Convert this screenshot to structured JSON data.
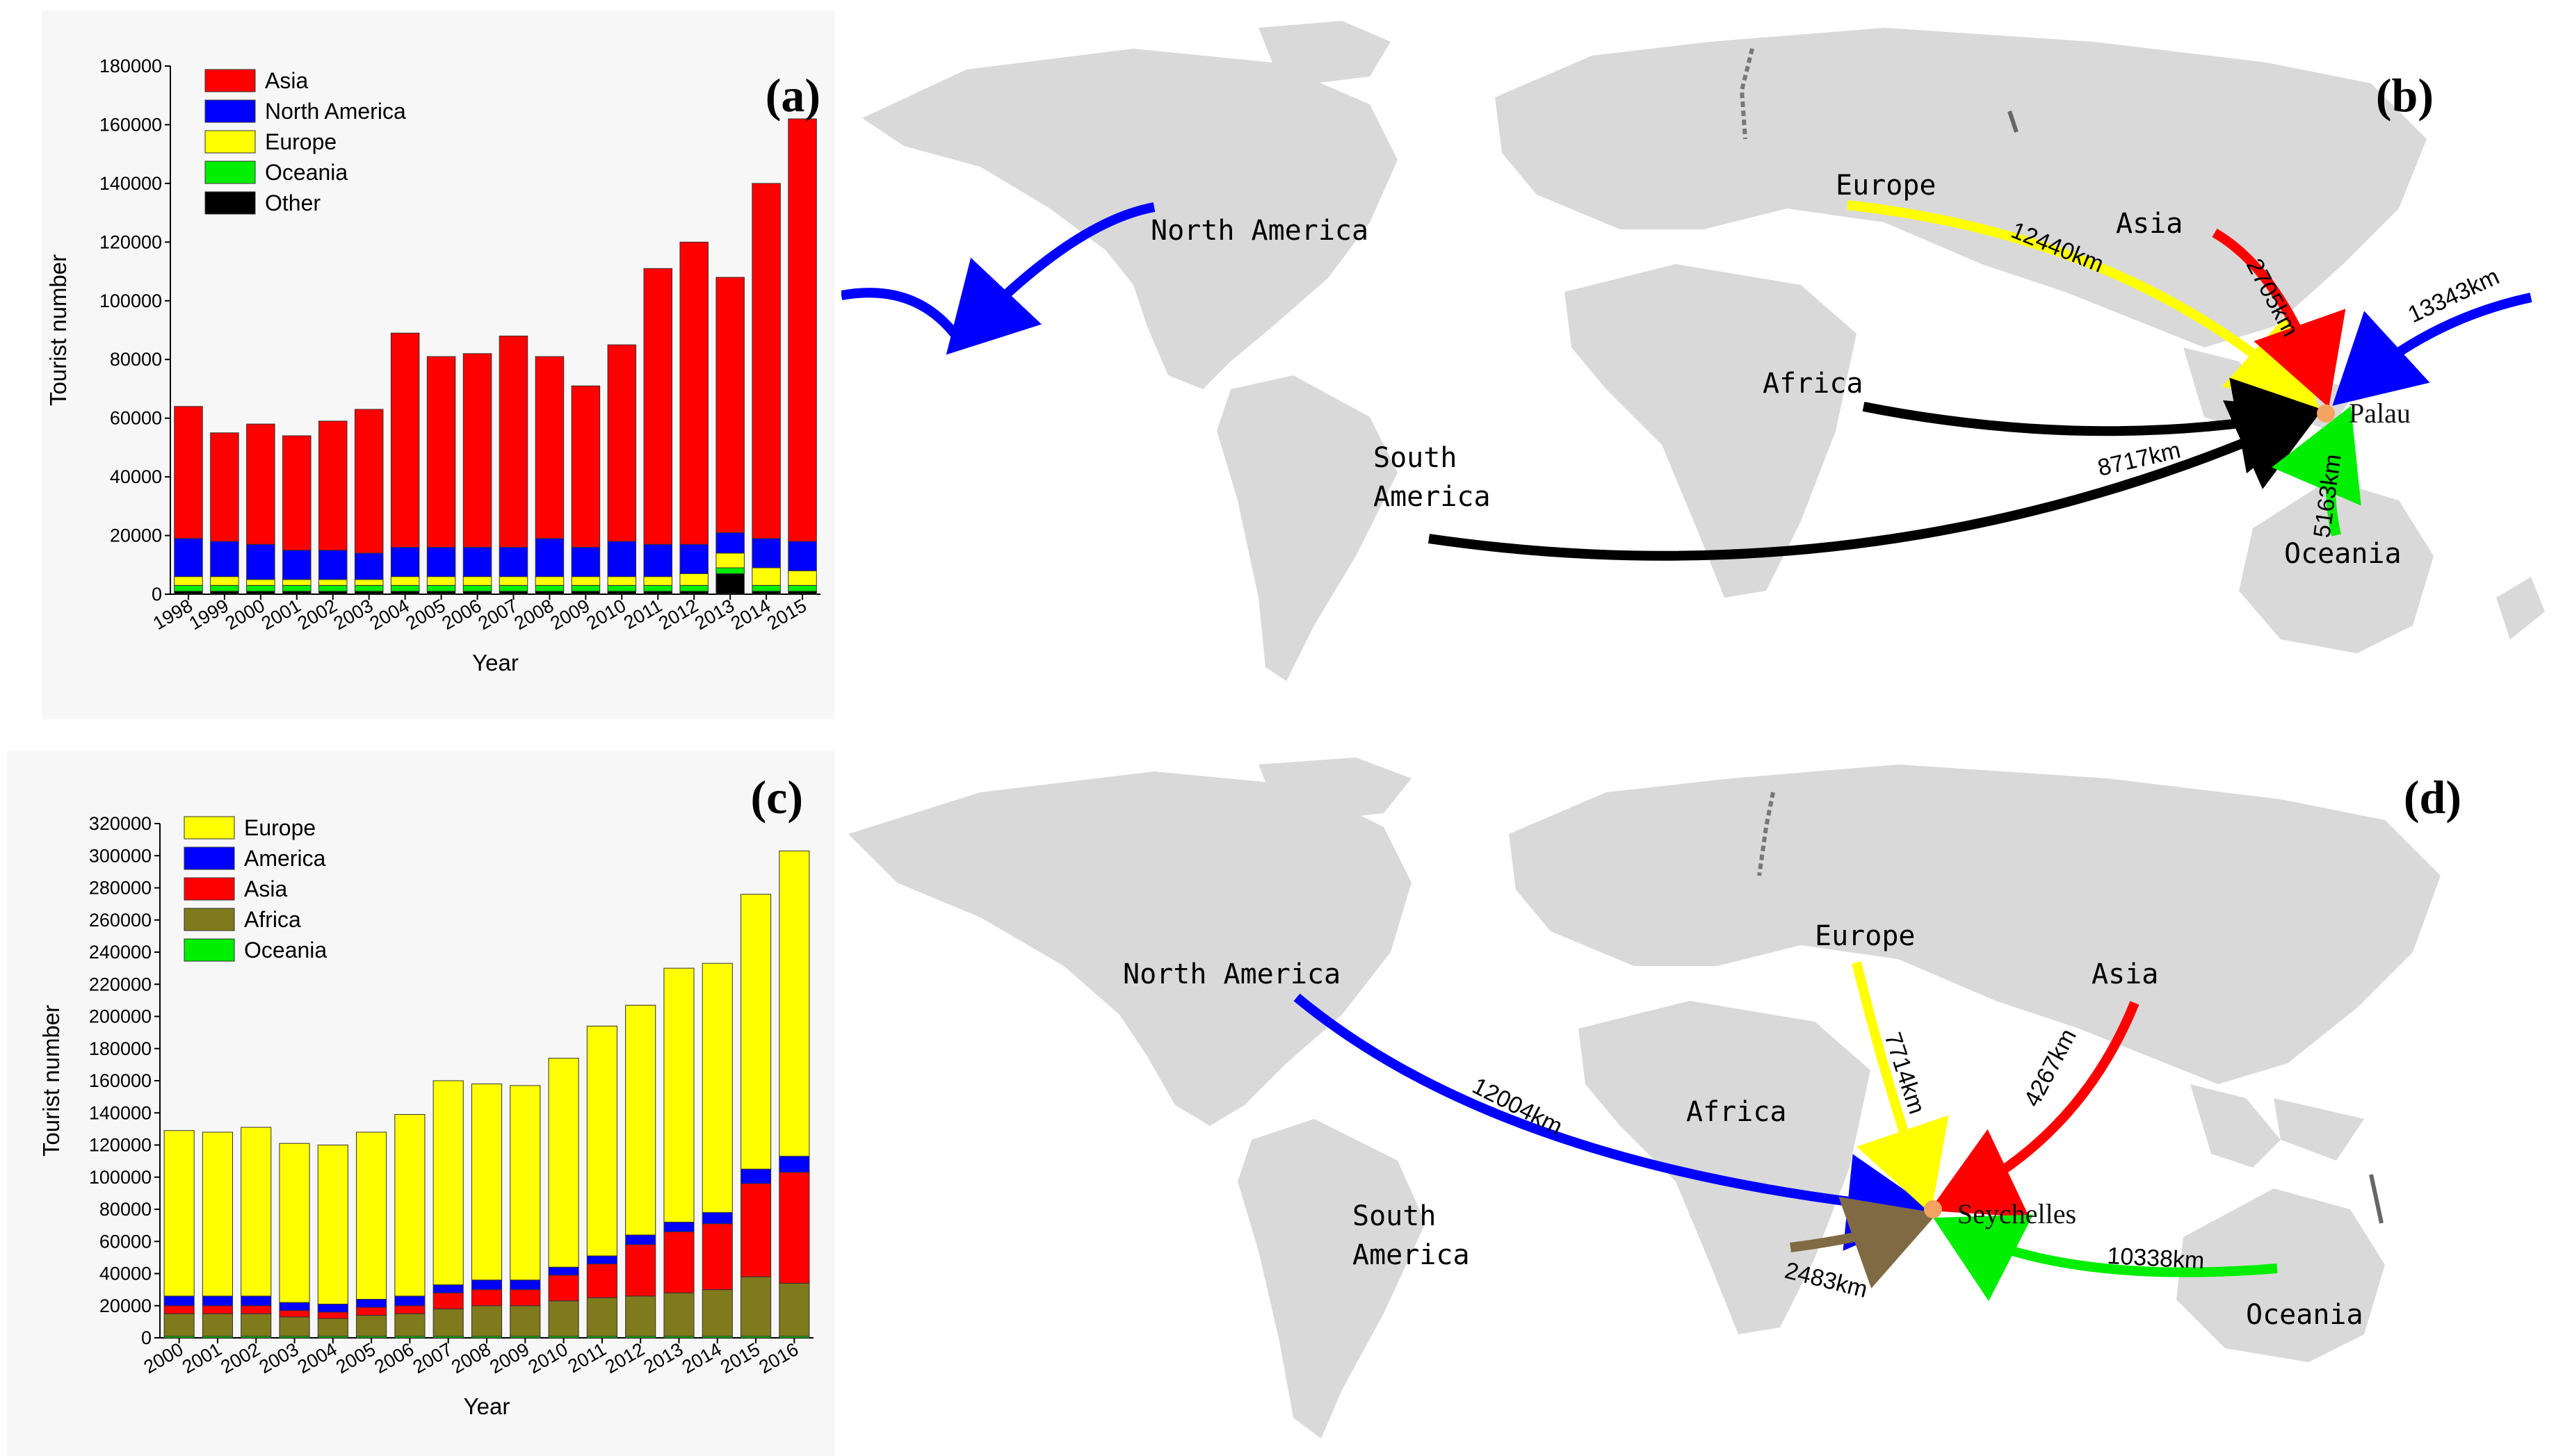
{
  "panel_labels": {
    "a": "(a)",
    "b": "(b)",
    "c": "(c)",
    "d": "(d)"
  },
  "colors": {
    "Asia": "#ff0000",
    "North America": "#0000ff",
    "America": "#0000ff",
    "Europe": "#ffff00",
    "Oceania": "#00ee00",
    "Africa": "#7f7a1b",
    "Other": "#000000",
    "africa_arrow_d": "#7f6a44"
  },
  "chart_data": [
    {
      "id": "a",
      "type": "bar",
      "stacked": true,
      "xlabel": "Year",
      "ylabel": "Tourist number",
      "ylim": [
        0,
        180000
      ],
      "yticks": [
        0,
        20000,
        40000,
        60000,
        80000,
        100000,
        120000,
        140000,
        160000,
        180000
      ],
      "categories": [
        "1998",
        "1999",
        "2000",
        "2001",
        "2002",
        "2003",
        "2004",
        "2005",
        "2006",
        "2007",
        "2008",
        "2009",
        "2010",
        "2011",
        "2012",
        "2013",
        "2014",
        "2015"
      ],
      "legend_order": [
        "Asia",
        "North America",
        "Europe",
        "Oceania",
        "Other"
      ],
      "stack_order": [
        "Other",
        "Oceania",
        "Europe",
        "North America",
        "Asia"
      ],
      "legend_position": "top-left",
      "series": [
        {
          "name": "Other",
          "values": [
            1000,
            1000,
            1000,
            1000,
            1000,
            1000,
            1000,
            1000,
            1000,
            1000,
            1000,
            1000,
            1000,
            1000,
            1000,
            7000,
            1000,
            1000
          ]
        },
        {
          "name": "Oceania",
          "values": [
            2000,
            2000,
            2000,
            2000,
            2000,
            2000,
            2000,
            2000,
            2000,
            2000,
            2000,
            2000,
            2000,
            2000,
            2000,
            2000,
            2000,
            2000
          ]
        },
        {
          "name": "Europe",
          "values": [
            3000,
            3000,
            2000,
            2000,
            2000,
            2000,
            3000,
            3000,
            3000,
            3000,
            3000,
            3000,
            3000,
            3000,
            4000,
            5000,
            6000,
            5000
          ]
        },
        {
          "name": "North America",
          "values": [
            13000,
            12000,
            12000,
            10000,
            10000,
            9000,
            10000,
            10000,
            10000,
            10000,
            13000,
            10000,
            12000,
            11000,
            10000,
            7000,
            10000,
            10000
          ]
        },
        {
          "name": "Asia",
          "values": [
            45000,
            37000,
            41000,
            39000,
            44000,
            49000,
            73000,
            65000,
            66000,
            72000,
            62000,
            55000,
            67000,
            94000,
            103000,
            87000,
            121000,
            144000
          ]
        }
      ]
    },
    {
      "id": "c",
      "type": "bar",
      "stacked": true,
      "xlabel": "Year",
      "ylabel": "Tourist number",
      "ylim": [
        0,
        320000
      ],
      "yticks": [
        0,
        20000,
        40000,
        60000,
        80000,
        100000,
        120000,
        140000,
        160000,
        180000,
        200000,
        220000,
        240000,
        260000,
        280000,
        300000,
        320000
      ],
      "categories": [
        "2000",
        "2001",
        "2002",
        "2003",
        "2004",
        "2005",
        "2006",
        "2007",
        "2008",
        "2009",
        "2010",
        "2011",
        "2012",
        "2013",
        "2014",
        "2015",
        "2016"
      ],
      "legend_order": [
        "Europe",
        "America",
        "Asia",
        "Africa",
        "Oceania"
      ],
      "stack_order": [
        "Oceania",
        "Africa",
        "Asia",
        "America",
        "Europe"
      ],
      "legend_position": "top-left",
      "series": [
        {
          "name": "Oceania",
          "values": [
            1000,
            1000,
            1000,
            1000,
            1000,
            1000,
            1000,
            1000,
            1000,
            1000,
            1000,
            1000,
            1000,
            1000,
            1000,
            1000,
            1000
          ]
        },
        {
          "name": "Africa",
          "values": [
            14000,
            14000,
            14000,
            12000,
            11000,
            13000,
            14000,
            17000,
            19000,
            19000,
            22000,
            24000,
            25000,
            27000,
            29000,
            37000,
            33000
          ]
        },
        {
          "name": "Asia",
          "values": [
            5000,
            5000,
            5000,
            4000,
            4000,
            5000,
            5000,
            10000,
            10000,
            10000,
            16000,
            21000,
            32000,
            38000,
            41000,
            58000,
            69000
          ]
        },
        {
          "name": "America",
          "values": [
            6000,
            6000,
            6000,
            5000,
            5000,
            5000,
            6000,
            5000,
            6000,
            6000,
            5000,
            5000,
            6000,
            6000,
            7000,
            9000,
            10000
          ]
        },
        {
          "name": "Europe",
          "values": [
            103000,
            102000,
            105000,
            99000,
            99000,
            104000,
            113000,
            127000,
            122000,
            121000,
            130000,
            143000,
            143000,
            158000,
            155000,
            171000,
            190000
          ]
        }
      ]
    }
  ],
  "map_b": {
    "destination": "Palau",
    "regions": [
      "North America",
      "Europe",
      "Asia",
      "Africa",
      "South America",
      "Oceania"
    ],
    "south_america_lines": [
      "South",
      "America"
    ],
    "distances": {
      "Europe": "12440km",
      "Asia": "2705km",
      "North America": "13343km",
      "South America": "8717km",
      "Oceania": "5163km"
    }
  },
  "map_d": {
    "destination": "Seychelles",
    "regions": [
      "North America",
      "Europe",
      "Asia",
      "Africa",
      "South America",
      "Oceania"
    ],
    "south_america_lines": [
      "South",
      "America"
    ],
    "distances": {
      "North America": "12004km",
      "Europe": "7714km",
      "Asia": "4267km",
      "Africa": "2483km",
      "Oceania": "10338km"
    }
  }
}
